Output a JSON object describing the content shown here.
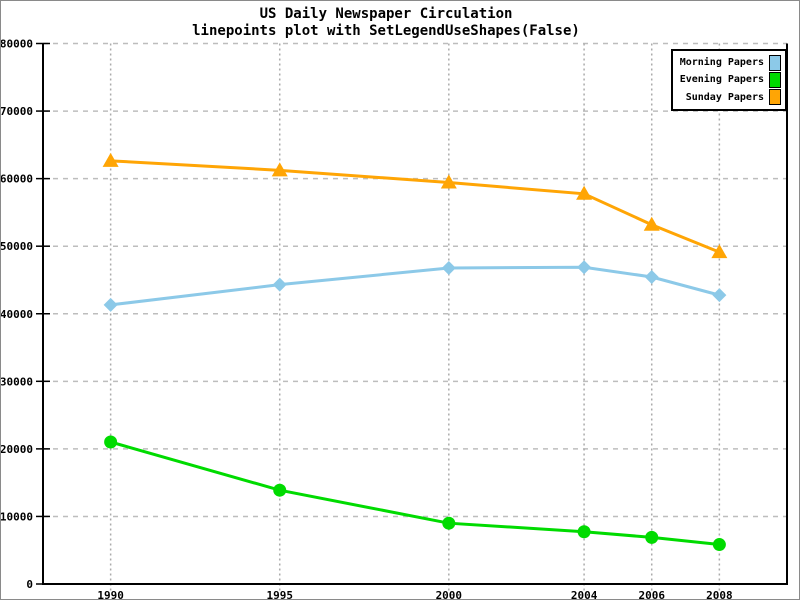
{
  "chart_data": {
    "type": "line",
    "title": "US Daily Newspaper Circulation",
    "subtitle": "linepoints plot with SetLegendUseShapes(False)",
    "xlabel": "",
    "ylabel": "",
    "x": [
      1990,
      1995,
      2000,
      2004,
      2006,
      2008
    ],
    "x_tick_labels": [
      "1990",
      "1995",
      "2000",
      "2004",
      "2006",
      "2008"
    ],
    "y_ticks": [
      0,
      10000,
      20000,
      30000,
      40000,
      50000,
      60000,
      70000,
      80000
    ],
    "y_tick_labels": [
      "0",
      "10000",
      "20000",
      "30000",
      "40000",
      "50000",
      "60000",
      "70000",
      "80000"
    ],
    "xlim": [
      1988,
      2010
    ],
    "ylim": [
      0,
      80000
    ],
    "grid": true,
    "legend_position": "top-right",
    "axis_color": "#000000",
    "grid_color_horizontal": "#bdbdbd",
    "grid_color_vertical": "#ababab",
    "series": [
      {
        "name": "Morning Papers",
        "color": "#8cc9e8",
        "marker": "diamond",
        "values": [
          41311,
          44310,
          46772,
          46887,
          45441,
          42757
        ]
      },
      {
        "name": "Evening Papers",
        "color": "#00db00",
        "marker": "circle",
        "values": [
          21017,
          13883,
          9000,
          7738,
          6900,
          5840
        ]
      },
      {
        "name": "Sunday Papers",
        "color": "#ffa505",
        "marker": "triangle-up",
        "values": [
          62634,
          61229,
          59421,
          57754,
          53179,
          49115
        ]
      }
    ]
  }
}
